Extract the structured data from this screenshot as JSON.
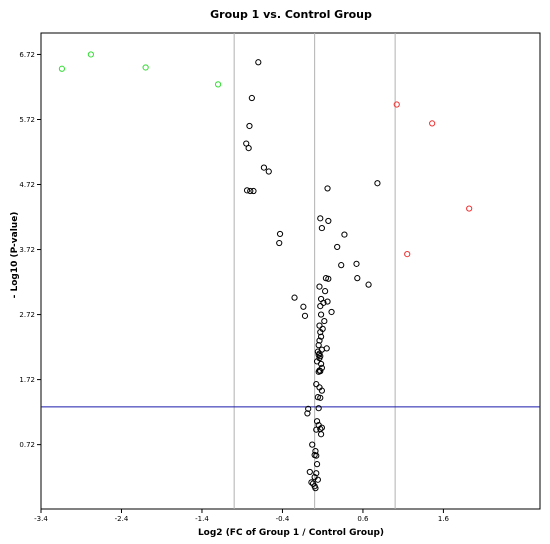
{
  "chart_data": {
    "type": "scatter",
    "title": "Group 1 vs. Control Group",
    "xlabel": "Log2 (FC of Group 1 / Control Group)",
    "ylabel": "- Log10 (P-value)",
    "xlim": [
      -3.4,
      2.8
    ],
    "ylim": [
      -0.27,
      7.05
    ],
    "xticks": [
      -3.4,
      -2.4,
      -1.4,
      -0.4,
      0.6,
      1.6
    ],
    "xtick_labels": [
      "-3.4",
      "-2.4",
      "-1.4",
      "-0.4",
      "0.6",
      "1.6"
    ],
    "yticks": [
      0.72,
      1.72,
      2.72,
      3.72,
      4.72,
      5.72,
      6.72
    ],
    "ytick_labels": [
      "0.72",
      "1.72",
      "2.72",
      "3.72",
      "4.72",
      "5.72",
      "6.72"
    ],
    "vertical_lines": [
      -1.0,
      0.0,
      1.0
    ],
    "threshold_y": 1.3,
    "grid": false,
    "colors": {
      "down": "#33dd33",
      "up": "#ee3333",
      "ns": "#000000",
      "threshold": "#1a1aaa",
      "vline": "#b0b0b0"
    },
    "series": [
      {
        "group": "down",
        "color": "#33dd33",
        "x": [
          -3.14,
          -2.78,
          -2.1,
          -1.2
        ],
        "y": [
          6.5,
          6.72,
          6.52,
          6.26
        ]
      },
      {
        "group": "up",
        "color": "#ee3333",
        "x": [
          1.02,
          1.46,
          1.92,
          1.15
        ],
        "y": [
          5.95,
          5.66,
          4.35,
          3.65
        ]
      },
      {
        "group": "ns",
        "color": "#000000",
        "x": [
          -0.7,
          -0.78,
          -0.81,
          -0.85,
          -0.82,
          -0.8,
          -0.63,
          -0.57,
          -0.84,
          -0.76,
          -0.43,
          -0.44,
          0.16,
          0.78,
          0.07,
          0.17,
          0.37,
          0.09,
          0.28,
          0.52,
          0.33,
          0.53,
          0.67,
          0.14,
          0.17,
          0.06,
          0.13,
          -0.25,
          0.08,
          0.11,
          0.16,
          0.07,
          -0.14,
          0.21,
          -0.12,
          0.08,
          0.12,
          0.06,
          0.1,
          0.07,
          0.08,
          0.06,
          0.15,
          0.05,
          0.09,
          0.04,
          0.06,
          0.07,
          0.05,
          0.06,
          0.03,
          0.08,
          0.09,
          0.06,
          0.07,
          0.05,
          0.02,
          0.06,
          0.09,
          0.04,
          0.07,
          0.05,
          -0.08,
          -0.09,
          0.03,
          0.05,
          0.07,
          0.02,
          0.09,
          0.08,
          -0.03,
          0.01,
          0.0,
          0.02,
          0.03,
          -0.06,
          0.02,
          0.0,
          0.04,
          -0.04,
          -0.02,
          0.0,
          0.01
        ],
        "y": [
          6.6,
          6.05,
          5.62,
          5.35,
          5.28,
          4.62,
          4.98,
          4.92,
          4.63,
          4.62,
          3.96,
          3.82,
          4.66,
          4.74,
          4.2,
          4.16,
          3.95,
          4.05,
          3.76,
          3.5,
          3.48,
          3.28,
          3.18,
          3.28,
          3.27,
          3.15,
          3.08,
          2.98,
          2.96,
          2.9,
          2.92,
          2.85,
          2.84,
          2.76,
          2.7,
          2.72,
          2.62,
          2.55,
          2.5,
          2.45,
          2.38,
          2.32,
          2.2,
          2.25,
          2.18,
          2.15,
          2.12,
          2.08,
          2.1,
          2.05,
          2.0,
          1.96,
          1.9,
          1.86,
          1.85,
          1.84,
          1.65,
          1.6,
          1.55,
          1.45,
          1.44,
          1.28,
          1.27,
          1.2,
          1.08,
          1.02,
          0.96,
          0.95,
          0.98,
          0.88,
          0.72,
          0.62,
          0.56,
          0.55,
          0.42,
          0.3,
          0.28,
          0.22,
          0.18,
          0.14,
          0.12,
          0.08,
          0.05
        ]
      }
    ]
  }
}
